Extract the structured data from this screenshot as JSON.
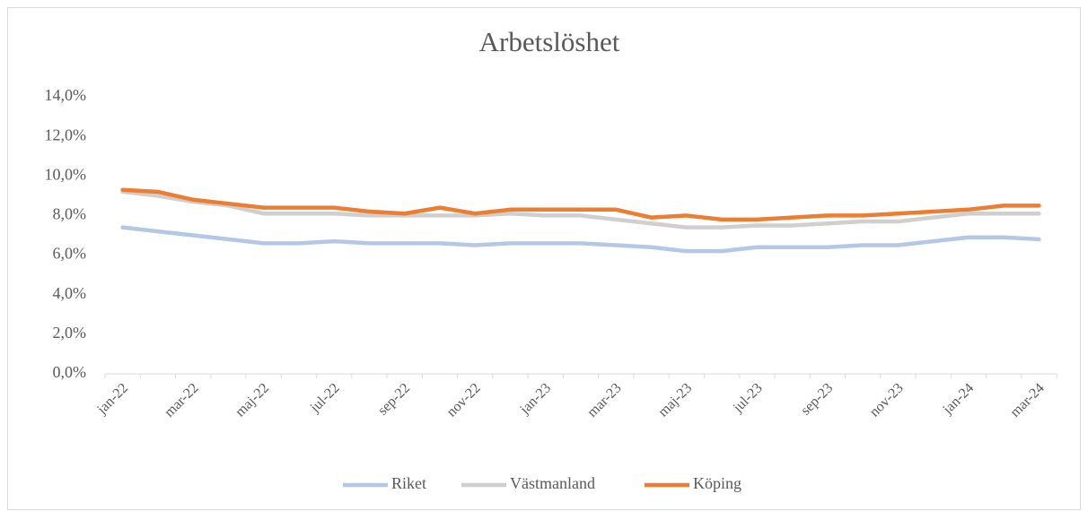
{
  "chart_data": {
    "type": "line",
    "title": "Arbetslöshet",
    "categories": [
      "jan-22",
      null,
      "mar-22",
      null,
      "maj-22",
      null,
      "jul-22",
      null,
      "sep-22",
      null,
      "nov-22",
      null,
      "jan-23",
      null,
      "mar-23",
      null,
      "maj-23",
      null,
      "jul-23",
      null,
      "sep-23",
      null,
      "nov-23",
      null,
      "jan-24",
      null,
      "mar-24"
    ],
    "series": [
      {
        "name": "Riket",
        "color": "#b4c7e7",
        "values": [
          7.4,
          7.2,
          7.0,
          6.8,
          6.6,
          6.6,
          6.7,
          6.6,
          6.6,
          6.6,
          6.5,
          6.6,
          6.6,
          6.6,
          6.5,
          6.4,
          6.2,
          6.2,
          6.4,
          6.4,
          6.4,
          6.5,
          6.5,
          6.7,
          6.9,
          6.9,
          6.8
        ]
      },
      {
        "name": "Västmanland",
        "color": "#d0cece",
        "values": [
          9.2,
          9.0,
          8.7,
          8.5,
          8.1,
          8.1,
          8.1,
          8.0,
          8.0,
          8.0,
          8.0,
          8.1,
          8.0,
          8.0,
          7.8,
          7.6,
          7.4,
          7.4,
          7.5,
          7.5,
          7.6,
          7.7,
          7.7,
          7.9,
          8.1,
          8.1,
          8.1
        ]
      },
      {
        "name": "Köping",
        "color": "#ed7d31",
        "values": [
          9.3,
          9.2,
          8.8,
          8.6,
          8.4,
          8.4,
          8.4,
          8.2,
          8.1,
          8.4,
          8.1,
          8.3,
          8.3,
          8.3,
          8.3,
          7.9,
          8.0,
          7.8,
          7.8,
          7.9,
          8.0,
          8.0,
          8.1,
          8.2,
          8.3,
          8.5,
          8.5
        ]
      }
    ],
    "ylim": [
      0,
      14
    ],
    "yticks": [
      {
        "value": 0,
        "label": "0,0%"
      },
      {
        "value": 2,
        "label": "2,0%"
      },
      {
        "value": 4,
        "label": "4,0%"
      },
      {
        "value": 6,
        "label": "6,0%"
      },
      {
        "value": 8,
        "label": "8,0%"
      },
      {
        "value": 10,
        "label": "10,0%"
      },
      {
        "value": 12,
        "label": "12,0%"
      },
      {
        "value": 14,
        "label": "14,0%"
      }
    ],
    "legend": "bottom"
  }
}
